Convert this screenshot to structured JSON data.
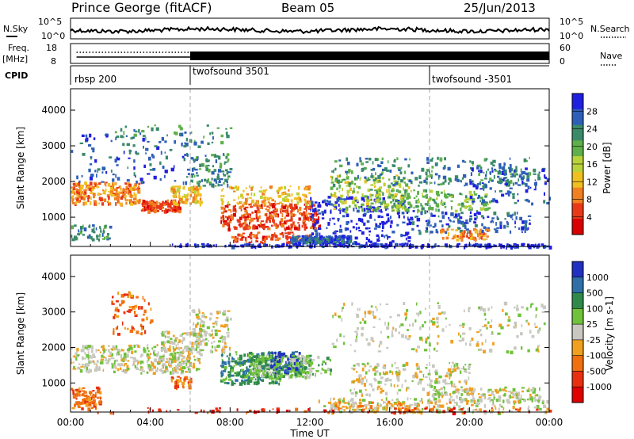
{
  "header": {
    "station": "Prince George (fitACF)",
    "beam": "Beam 05",
    "date": "25/Jun/2013"
  },
  "top_panels": {
    "nsky_label": "N.Sky",
    "nsky_ticks": [
      "10^5",
      "10^0"
    ],
    "nsearch_label": "N.Search",
    "nsearch_ticks": [
      "10^5",
      "10^0"
    ],
    "freq_label": "Freq.",
    "freq_unit": "[MHz]",
    "freq_ticks": [
      "18",
      "8"
    ],
    "nave_label": "Nave",
    "nave_ticks": [
      "60",
      "0"
    ],
    "cpid_label": "CPID",
    "cpid_segments": [
      {
        "label": "rbsp 200",
        "start_hour": 0
      },
      {
        "label": "twofsound 3501",
        "start_hour": 6
      },
      {
        "label": "twofsound -3501",
        "start_hour": 18
      }
    ]
  },
  "chart_data": [
    {
      "type": "heatmap",
      "title": "Power",
      "xlabel": "",
      "ylabel": "Slant Range [km]",
      "x_ticks": [
        "00:00",
        "04:00",
        "08:00",
        "12:00",
        "16:00",
        "20:00",
        "00:00"
      ],
      "xlim_hours": [
        0,
        24
      ],
      "y_ticks": [
        1000,
        2000,
        3000,
        4000
      ],
      "ylim": [
        180,
        4600
      ],
      "colorbar": {
        "label": "Power [dB]",
        "ticks": [
          "28",
          "24",
          "20",
          "16",
          "12",
          "8",
          "4"
        ],
        "range": [
          0,
          30
        ],
        "colors": [
          "#1f1fe0",
          "#2e5fb8",
          "#3a8a6a",
          "#5fb04a",
          "#b8d23a",
          "#f0c020",
          "#f08020",
          "#e83818",
          "#d80000"
        ]
      },
      "dashed_time_markers_hours": [
        6,
        18
      ]
    },
    {
      "type": "heatmap",
      "title": "Velocity",
      "xlabel": "Time UT",
      "ylabel": "Slant Range [km]",
      "x_ticks": [
        "00:00",
        "04:00",
        "08:00",
        "12:00",
        "16:00",
        "20:00",
        "00:00"
      ],
      "xlim_hours": [
        0,
        24
      ],
      "y_ticks": [
        1000,
        2000,
        3000,
        4000
      ],
      "ylim": [
        180,
        4600
      ],
      "colorbar": {
        "label": "Velocity [m s-1]",
        "ticks": [
          "1000",
          "500",
          "100",
          "25",
          "-25",
          "-100",
          "-500",
          "-1000"
        ],
        "colors": [
          "#2030c0",
          "#2f6fa8",
          "#2f8a4a",
          "#6fc23a",
          "#c8c8c0",
          "#f0a020",
          "#f07010",
          "#e83010",
          "#e00000"
        ]
      },
      "dashed_time_markers_hours": [
        6,
        18
      ]
    }
  ]
}
